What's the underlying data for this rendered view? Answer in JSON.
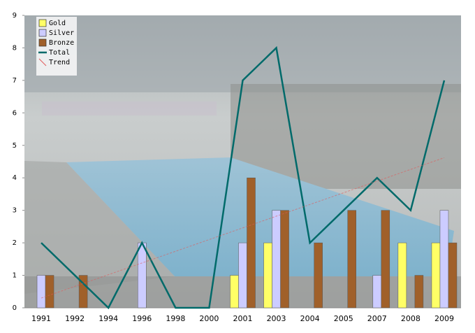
{
  "chart_data": {
    "type": "bar",
    "categories": [
      "1991",
      "1992",
      "1994",
      "1996",
      "1998",
      "2000",
      "2001",
      "2003",
      "2004",
      "2005",
      "2007",
      "2008",
      "2009"
    ],
    "series": [
      {
        "name": "Gold",
        "color": "#ffff66",
        "values": [
          0,
          0,
          0,
          0,
          0,
          0,
          1,
          2,
          0,
          0,
          0,
          2,
          2
        ]
      },
      {
        "name": "Silver",
        "color": "#ccccff",
        "values": [
          1,
          0,
          0,
          2,
          0,
          0,
          2,
          3,
          0,
          0,
          1,
          0,
          3
        ]
      },
      {
        "name": "Bronze",
        "color": "#a0602a",
        "values": [
          1,
          1,
          0,
          0,
          0,
          0,
          4,
          3,
          2,
          3,
          3,
          1,
          2
        ]
      },
      {
        "name": "Total",
        "type": "line",
        "color": "#006a6a",
        "values": [
          2,
          1,
          0,
          2,
          0,
          0,
          7,
          8,
          2,
          3,
          4,
          3,
          7
        ]
      },
      {
        "name": "Trend",
        "type": "line",
        "color": "#e05a5a",
        "values": [
          0.3,
          0.66,
          1.02,
          1.38,
          1.74,
          2.1,
          2.46,
          2.82,
          3.18,
          3.54,
          3.9,
          4.26,
          4.62
        ]
      }
    ],
    "ylim": [
      0,
      9
    ],
    "yticks": [
      0,
      1,
      2,
      3,
      4,
      5,
      6,
      7,
      8,
      9
    ],
    "legend": "top-left"
  }
}
